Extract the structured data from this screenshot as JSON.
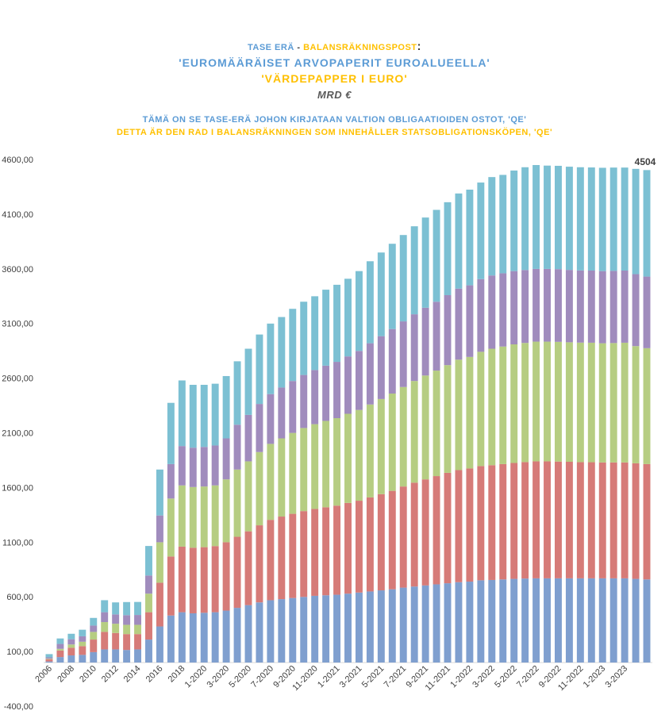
{
  "titles": {
    "line1_fi": "TASE ERÄ",
    "line1_sep": " - ",
    "line1_sv": "BALANSRÄKNINGSPOST",
    "line1_colon": ":",
    "line2": "'EUROMÄÄRÄISET ARVOPAPERIT EUROALUEELLA'",
    "line3": "'VÄRDEPAPPER I EURO'",
    "unit": "MRD €",
    "sub_fi": "TÄMÄ ON SE TASE-ERÄ JOHON KIRJATAAN VALTION OBLIGAATIOIDEN OSTOT, 'QE'",
    "sub_sv": "DETTA ÄR DEN RAD I BALANSRÄKNINGEN SOM INNEHÅLLER STATSOBLIGATIONSKÖPEN, 'QE'"
  },
  "colors": {
    "series": [
      "#7f9fcf",
      "#d67b78",
      "#b6cd82",
      "#a08cbd",
      "#7cc0d3"
    ],
    "axis": "#d9d9d9",
    "label": "#404040"
  },
  "chart_data": {
    "type": "bar",
    "stacked": true,
    "title": "'EUROMÄÄRÄISET ARVOPAPERIT EUROALUEELLA' / 'VÄRDEPAPPER I EURO'",
    "ylabel": "MRD €",
    "ylim": [
      -400,
      4600
    ],
    "y_ticks": [
      "4600,00",
      "4100,00",
      "3600,00",
      "3100,00",
      "2600,00",
      "2100,00",
      "1600,00",
      "1100,00",
      "600,00",
      "100,00",
      "-400,00"
    ],
    "y_tick_values": [
      4600,
      4100,
      3600,
      3100,
      2600,
      2100,
      1600,
      1100,
      600,
      100,
      -400
    ],
    "x_tick_labels": [
      "2006",
      "2008",
      "2010",
      "2012",
      "2014",
      "2016",
      "2018",
      "1-2020",
      "3-2020",
      "5-2020",
      "7-2020",
      "9-2020",
      "11-2020",
      "1-2021",
      "3-2021",
      "5-2021",
      "7-2021",
      "9-2021",
      "11-2021",
      "1-2022",
      "3-2022",
      "5-2022",
      "7-2022",
      "9-2022",
      "11-2022",
      "1-2023",
      "3-2023"
    ],
    "x_tick_bar_index": [
      0,
      2,
      4,
      6,
      8,
      10,
      12,
      14,
      16,
      18,
      20,
      22,
      24,
      26,
      28,
      30,
      32,
      34,
      36,
      38,
      40,
      42,
      44,
      46,
      48,
      50,
      52
    ],
    "last_value_label": "4504",
    "totals": [
      77,
      220,
      263,
      300,
      408,
      570,
      550,
      553,
      554,
      1066,
      1765,
      2375,
      2580,
      2540,
      2540,
      2550,
      2620,
      2755,
      2870,
      3000,
      3100,
      3160,
      3235,
      3300,
      3350,
      3410,
      3455,
      3510,
      3580,
      3670,
      3750,
      3830,
      3910,
      3990,
      4070,
      4140,
      4210,
      4290,
      4325,
      4390,
      4440,
      4460,
      4500,
      4530,
      4550,
      4545,
      4543,
      4535,
      4530,
      4528,
      4525,
      4527,
      4527,
      4515,
      4504
    ],
    "series": [
      {
        "name": "segment-1",
        "values": [
          10,
          50,
          65,
          70,
          95,
          120,
          120,
          115,
          120,
          210,
          330,
          430,
          460,
          450,
          455,
          460,
          475,
          500,
          525,
          550,
          570,
          580,
          590,
          600,
          610,
          615,
          620,
          630,
          640,
          650,
          660,
          670,
          685,
          695,
          705,
          715,
          725,
          735,
          740,
          752,
          755,
          760,
          765,
          768,
          770,
          770,
          770,
          770,
          770,
          770,
          770,
          770,
          770,
          765,
          760
        ]
      },
      {
        "name": "segment-2",
        "values": [
          20,
          60,
          70,
          80,
          115,
          160,
          150,
          145,
          140,
          250,
          400,
          540,
          600,
          600,
          600,
          605,
          625,
          650,
          675,
          705,
          735,
          755,
          770,
          785,
          795,
          805,
          815,
          830,
          840,
          860,
          880,
          900,
          925,
          950,
          970,
          990,
          1010,
          1025,
          1035,
          1045,
          1050,
          1055,
          1060,
          1065,
          1070,
          1070,
          1068,
          1066,
          1063,
          1062,
          1060,
          1060,
          1060,
          1057,
          1055
        ]
      },
      {
        "name": "segment-3",
        "values": [
          5,
          15,
          30,
          40,
          70,
          90,
          85,
          85,
          85,
          170,
          370,
          530,
          560,
          555,
          555,
          555,
          575,
          615,
          640,
          670,
          695,
          715,
          740,
          760,
          775,
          790,
          800,
          815,
          830,
          850,
          870,
          890,
          910,
          930,
          950,
          965,
          985,
          1010,
          1020,
          1045,
          1065,
          1075,
          1085,
          1090,
          1095,
          1095,
          1095,
          1093,
          1093,
          1093,
          1090,
          1092,
          1095,
          1072,
          1060
        ]
      },
      {
        "name": "segment-4",
        "values": [
          12,
          45,
          48,
          50,
          58,
          90,
          85,
          88,
          90,
          166,
          245,
          315,
          360,
          360,
          362,
          365,
          375,
          410,
          425,
          440,
          455,
          465,
          475,
          485,
          495,
          505,
          515,
          525,
          540,
          560,
          575,
          590,
          600,
          610,
          620,
          630,
          640,
          650,
          655,
          665,
          670,
          670,
          670,
          667,
          665,
          665,
          665,
          662,
          660,
          660,
          660,
          660,
          660,
          658,
          655
        ]
      },
      {
        "name": "segment-5",
        "values": [
          30,
          50,
          50,
          60,
          70,
          110,
          110,
          120,
          119,
          270,
          420,
          560,
          600,
          575,
          568,
          565,
          570,
          580,
          605,
          635,
          645,
          645,
          660,
          670,
          675,
          695,
          705,
          710,
          730,
          750,
          765,
          780,
          790,
          805,
          825,
          840,
          850,
          870,
          875,
          883,
          900,
          900,
          920,
          940,
          950,
          945,
          945,
          944,
          944,
          943,
          945,
          945,
          942,
          963,
          974
        ]
      }
    ]
  }
}
